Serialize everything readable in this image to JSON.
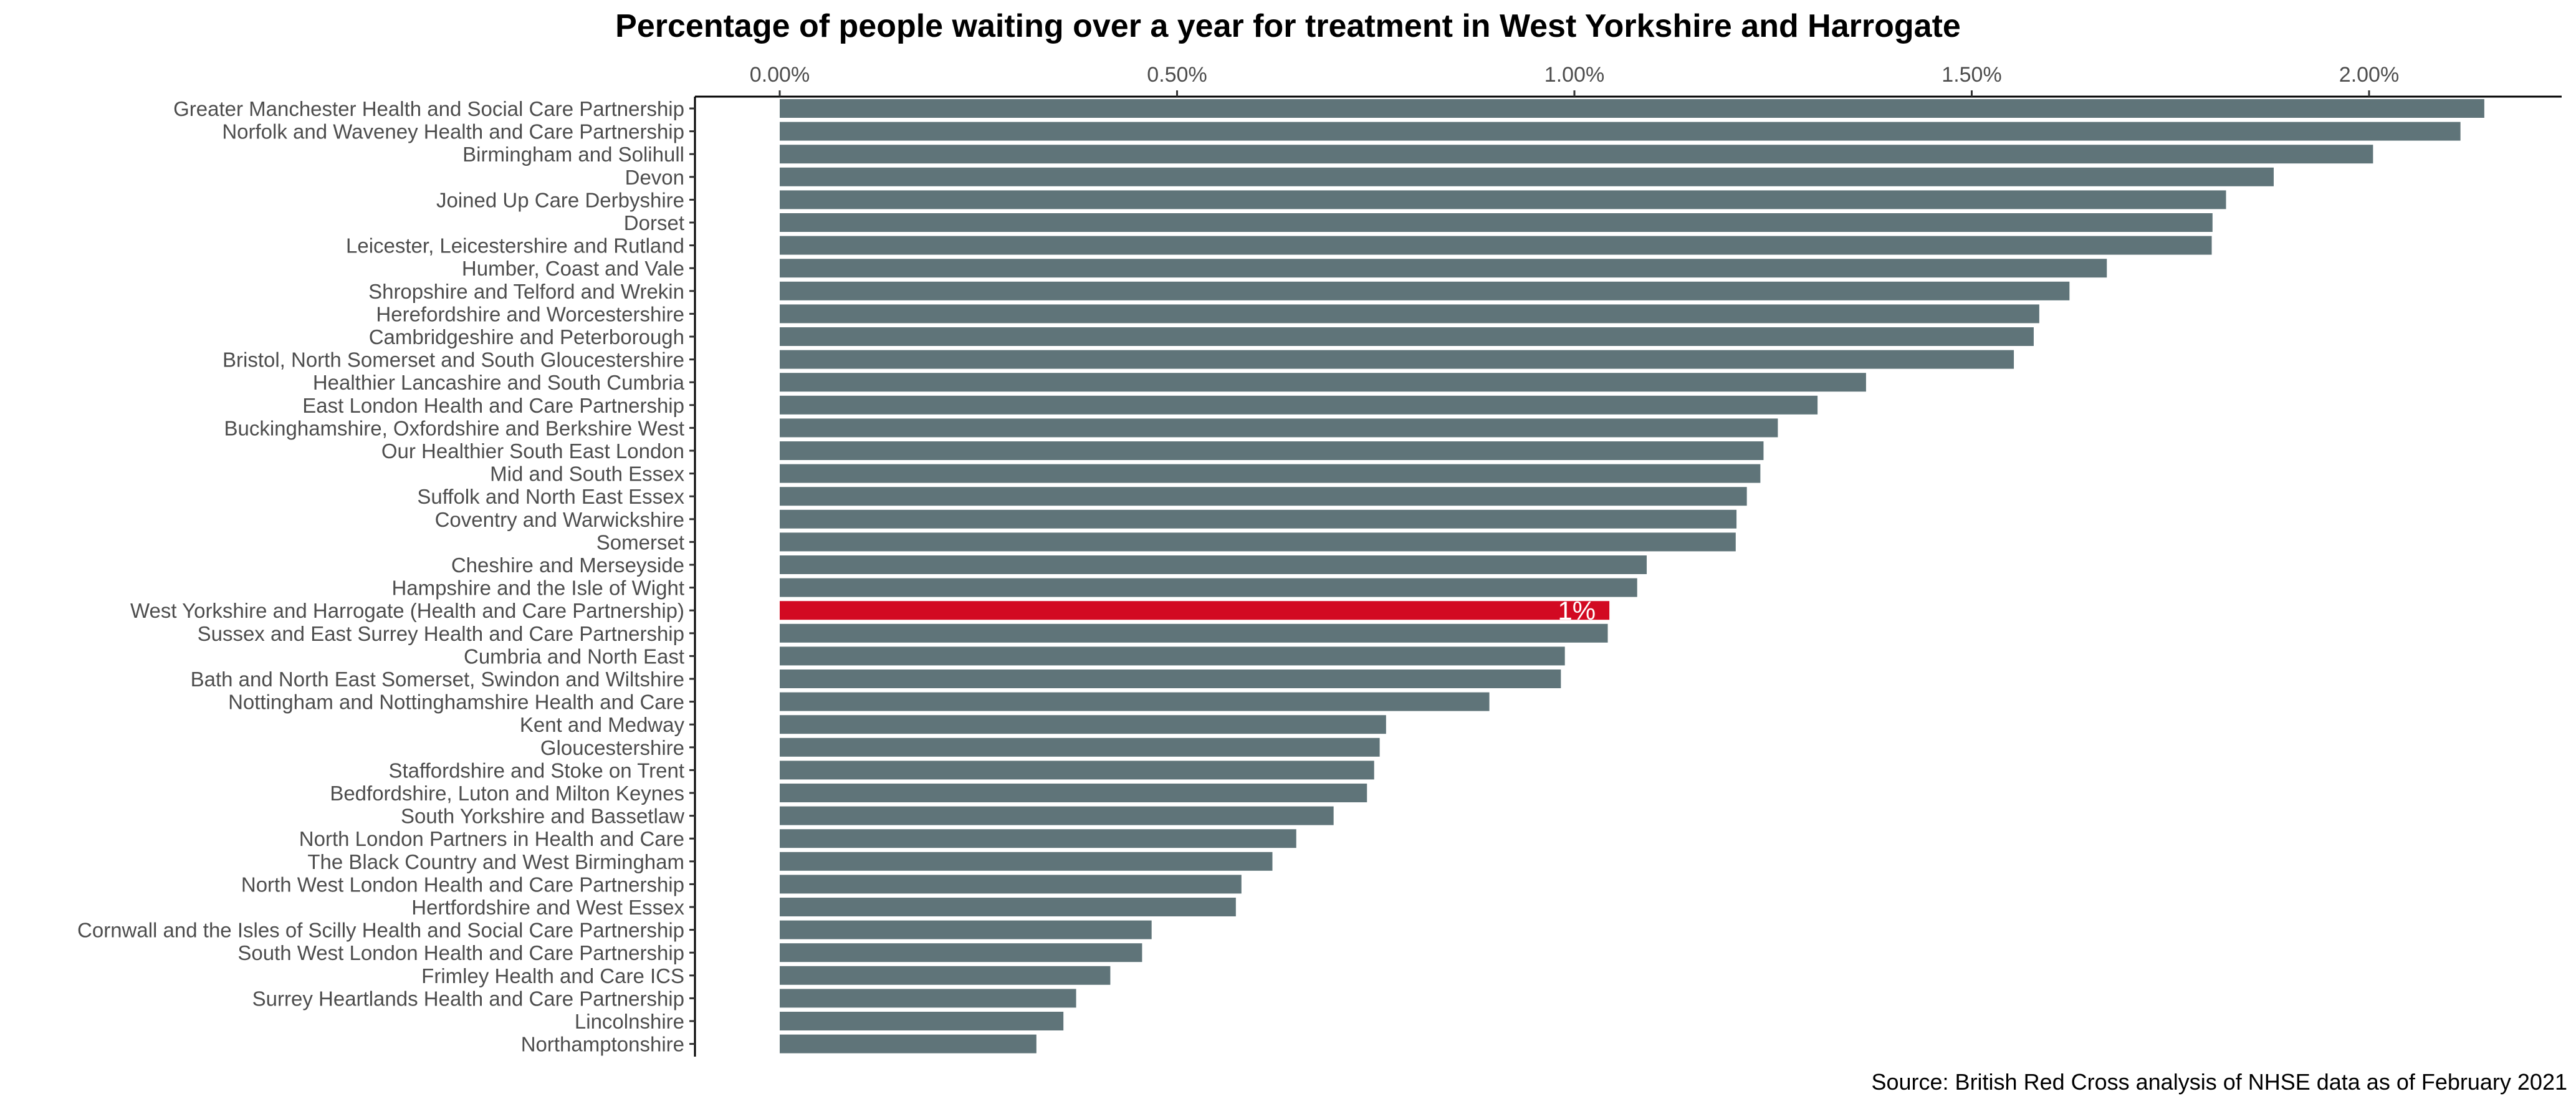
{
  "chart_data": {
    "type": "bar",
    "orientation": "horizontal",
    "title": "Percentage of people waiting over a year for treatment in West Yorkshire and Harrogate",
    "source": "Source: British Red Cross analysis of NHSE data as of February 2021",
    "xlim": [
      0,
      2.15
    ],
    "x_axis_position": "top",
    "x_ticks": [
      0,
      0.5,
      1.0,
      1.5,
      2.0
    ],
    "x_tick_labels": [
      "0.00%",
      "0.50%",
      "1.00%",
      "1.50%",
      "2.00%"
    ],
    "grid": false,
    "legend": "none",
    "colors": {
      "default": "#5f7479",
      "highlight": "#d20a22"
    },
    "highlight_category": "West Yorkshire and Harrogate (Health and Care Partnership)",
    "highlight_label": "1%",
    "categories": [
      "Greater Manchester Health and Social Care Partnership",
      "Norfolk and Waveney Health and Care Partnership",
      "Birmingham and Solihull",
      "Devon",
      "Joined Up Care Derbyshire",
      "Dorset",
      "Leicester, Leicestershire and Rutland",
      "Humber, Coast and Vale",
      "Shropshire and Telford and Wrekin",
      "Herefordshire and Worcestershire",
      "Cambridgeshire and Peterborough",
      "Bristol, North Somerset and South Gloucestershire",
      "Healthier Lancashire and South Cumbria",
      "East London Health and Care Partnership",
      "Buckinghamshire, Oxfordshire and Berkshire West",
      "Our Healthier South East London",
      "Mid and South Essex",
      "Suffolk and North East Essex",
      "Coventry and Warwickshire",
      "Somerset",
      "Cheshire and Merseyside",
      "Hampshire and the Isle of Wight",
      "West Yorkshire and Harrogate (Health and Care Partnership)",
      "Sussex and East Surrey Health and Care Partnership",
      "Cumbria and North East",
      "Bath and North East Somerset, Swindon and Wiltshire",
      "Nottingham and Nottinghamshire Health and Care",
      "Kent and Medway",
      "Gloucestershire",
      "Staffordshire and Stoke on Trent",
      "Bedfordshire, Luton and Milton Keynes",
      "South Yorkshire and Bassetlaw",
      "North London Partners in Health and Care",
      "The Black Country and West Birmingham",
      "North West London Health and Care Partnership",
      "Hertfordshire and West Essex",
      "Cornwall and the Isles of Scilly Health and Social Care Partnership",
      "South West London Health and Care Partnership",
      "Frimley Health and Care ICS",
      "Surrey Heartlands Health and Care Partnership",
      "Lincolnshire",
      "Northamptonshire"
    ],
    "values": [
      2.145,
      2.115,
      2.005,
      1.88,
      1.82,
      1.803,
      1.802,
      1.67,
      1.623,
      1.585,
      1.578,
      1.553,
      1.367,
      1.306,
      1.256,
      1.238,
      1.234,
      1.217,
      1.204,
      1.203,
      1.091,
      1.079,
      1.044,
      1.042,
      0.988,
      0.983,
      0.893,
      0.763,
      0.755,
      0.748,
      0.739,
      0.697,
      0.65,
      0.62,
      0.581,
      0.574,
      0.468,
      0.456,
      0.416,
      0.373,
      0.357,
      0.323
    ]
  }
}
